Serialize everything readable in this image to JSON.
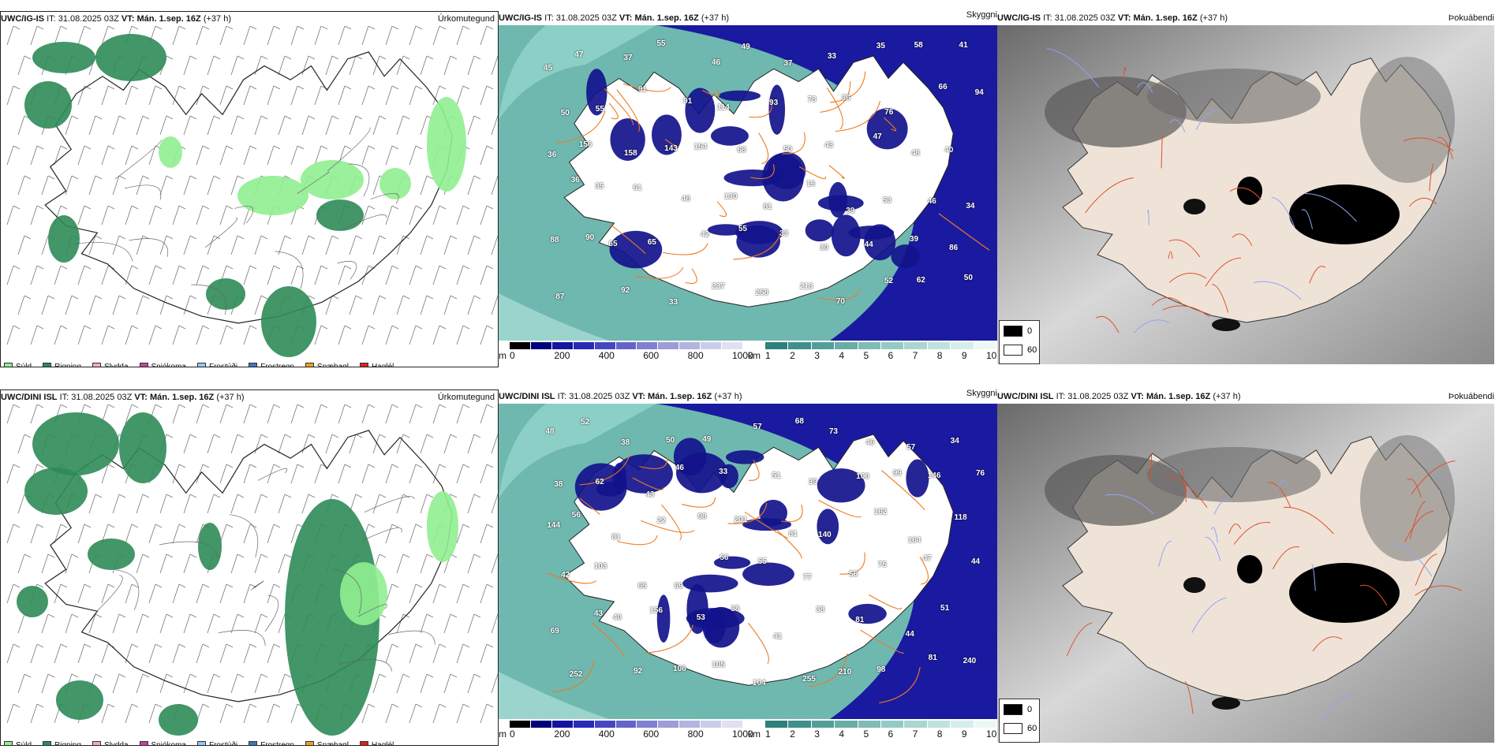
{
  "rows": [
    {
      "model": "UWC/IG-IS",
      "it_label": "IT:",
      "it": "31.08.2025 03Z",
      "vt_label": "VT:",
      "vt": "Mán. 1.sep. 16Z",
      "lead": "(+37 h)",
      "panels": {
        "precip": {
          "title": "Úrkomutegund"
        },
        "visibility": {
          "title": "Skyggni",
          "labels": [
            "45",
            "47",
            "37",
            "55",
            "46",
            "49",
            "37",
            "33",
            "35",
            "58",
            "41",
            "50",
            "55",
            "91",
            "91",
            "114",
            "93",
            "78",
            "36",
            "76",
            "66",
            "94",
            "156",
            "158",
            "143",
            "154",
            "68",
            "50",
            "43",
            "47",
            "48",
            "40",
            "36",
            "35",
            "61",
            "46",
            "130",
            "81",
            "16",
            "39",
            "53",
            "46",
            "34",
            "36",
            "65",
            "65",
            "42",
            "55",
            "33",
            "30",
            "44",
            "39",
            "86",
            "88",
            "90",
            "92",
            "33",
            "237",
            "258",
            "213",
            "70",
            "52",
            "62",
            "50",
            "87"
          ]
        },
        "cloud": {
          "title": "Þokuábendi"
        }
      }
    },
    {
      "model": "UWC/DINI ISL",
      "it_label": "IT:",
      "it": "31.08.2025 03Z",
      "vt_label": "VT:",
      "vt": "Mán. 1.sep. 16Z",
      "lead": "(+37 h)",
      "panels": {
        "precip": {
          "title": "Úrkomutegund"
        },
        "visibility": {
          "title": "Skyggni",
          "labels": [
            "48",
            "52",
            "38",
            "50",
            "49",
            "57",
            "68",
            "73",
            "46",
            "57",
            "34",
            "38",
            "62",
            "43",
            "46",
            "33",
            "51",
            "39",
            "106",
            "99",
            "146",
            "76",
            "56",
            "81",
            "22",
            "98",
            "201",
            "81",
            "140",
            "162",
            "164",
            "118",
            "144",
            "103",
            "65",
            "69",
            "56",
            "55",
            "77",
            "56",
            "75",
            "47",
            "44",
            "42",
            "40",
            "156",
            "53",
            "38",
            "41",
            "38",
            "81",
            "44",
            "51",
            "69",
            "43",
            "92",
            "106",
            "105",
            "104",
            "255",
            "210",
            "98",
            "81",
            "240",
            "252"
          ]
        },
        "cloud": {
          "title": "Þokuábendi"
        }
      }
    }
  ],
  "precip_legend": [
    {
      "label": "Súld",
      "color": "#90ee90"
    },
    {
      "label": "Rigning",
      "color": "#2e8b57"
    },
    {
      "label": "Slydda",
      "color": "#f4a6d0"
    },
    {
      "label": "Snjókoma",
      "color": "#c0479a"
    },
    {
      "label": "Frostúði",
      "color": "#99c6f2"
    },
    {
      "label": "Frostregn",
      "color": "#3a78c0"
    },
    {
      "label": "Snæhagl",
      "color": "#f0a020"
    },
    {
      "label": "Haglél",
      "color": "#e02020"
    }
  ],
  "elevation_bar": {
    "unit": "m",
    "ticks": [
      "0",
      "200",
      "400",
      "600",
      "800",
      "1000"
    ],
    "colors": [
      "#000000",
      "#00007a",
      "#1414a0",
      "#2a2ab8",
      "#4646c0",
      "#6464c8",
      "#8080d0",
      "#9c9cd8",
      "#b4b4e0",
      "#ccccea",
      "#e0e0f2"
    ]
  },
  "visibility_bar": {
    "unit": "km",
    "ticks": [
      "1",
      "2",
      "3",
      "4",
      "5",
      "6",
      "7",
      "8",
      "9",
      "10"
    ],
    "colors": [
      "#2f7f7a",
      "#3f908a",
      "#529f98",
      "#68ada6",
      "#7ebcb5",
      "#94cac4",
      "#aad6d1",
      "#c0e2de",
      "#d6eeeb",
      "#ecf8f6"
    ]
  },
  "cloud_legend": {
    "values": [
      "0",
      "60"
    ]
  }
}
